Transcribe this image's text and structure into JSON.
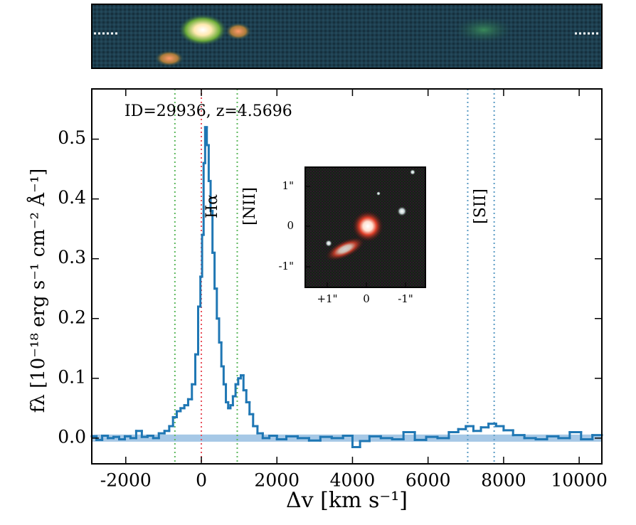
{
  "chart_data": {
    "type": "step",
    "annotation": "ID=29936, z=4.5696",
    "xlabel": "Δv [km s⁻¹]",
    "ylabel": "fλ [10⁻¹⁸ erg s⁻¹ cm⁻² Å⁻¹]",
    "xlim": [
      -2900,
      10600
    ],
    "ylim": [
      -0.043,
      0.584
    ],
    "xticks": [
      -2000,
      0,
      2000,
      4000,
      6000,
      8000,
      10000
    ],
    "yticks": [
      {
        "value": 0,
        "label": "0.0"
      },
      0.1,
      0.2,
      0.3,
      0.4,
      0.5
    ],
    "x": [
      -2850,
      -2700,
      -2550,
      -2400,
      -2250,
      -2100,
      -1950,
      -1800,
      -1650,
      -1500,
      -1350,
      -1200,
      -1050,
      -900,
      -800,
      -700,
      -600,
      -500,
      -400,
      -300,
      -200,
      -120,
      -50,
      0,
      40,
      80,
      120,
      170,
      220,
      270,
      320,
      380,
      440,
      500,
      560,
      620,
      680,
      740,
      800,
      870,
      940,
      1010,
      1080,
      1150,
      1230,
      1320,
      1420,
      1550,
      1700,
      1900,
      2100,
      2400,
      2700,
      3000,
      3300,
      3600,
      3900,
      4100,
      4300,
      4600,
      4900,
      5200,
      5500,
      5800,
      6100,
      6400,
      6700,
      6900,
      7100,
      7300,
      7500,
      7700,
      7900,
      8100,
      8400,
      8700,
      9000,
      9300,
      9600,
      9900,
      10200,
      10500
    ],
    "series": [
      {
        "color": "#1f77b4",
        "values": [
          0.003,
          -0.003,
          0.004,
          0.0,
          0.002,
          -0.002,
          0.003,
          0.0,
          0.012,
          0.002,
          0.004,
          0.0,
          0.008,
          0.012,
          0.02,
          0.035,
          0.045,
          0.05,
          0.055,
          0.065,
          0.09,
          0.14,
          0.22,
          0.27,
          0.34,
          0.46,
          0.52,
          0.49,
          0.43,
          0.38,
          0.31,
          0.25,
          0.2,
          0.16,
          0.12,
          0.09,
          0.06,
          0.05,
          0.055,
          0.07,
          0.09,
          0.1,
          0.105,
          0.08,
          0.06,
          0.04,
          0.02,
          0.008,
          0.0,
          0.004,
          -0.002,
          0.003,
          0.0,
          -0.004,
          0.002,
          0.0,
          0.004,
          -0.015,
          -0.005,
          0.003,
          0.0,
          -0.002,
          0.01,
          -0.003,
          0.002,
          0.0,
          0.01,
          0.015,
          0.02,
          0.012,
          0.018,
          0.024,
          0.02,
          0.013,
          0.005,
          0.0,
          -0.002,
          0.003,
          0.0,
          0.01,
          -0.002,
          0.005
        ]
      }
    ],
    "band": {
      "lower": -0.006,
      "upper": 0.006,
      "color": "#a6c8e6"
    },
    "vlines": [
      {
        "x": 0,
        "color": "#e8505b"
      },
      {
        "x": -700,
        "color": "#5cb85c"
      },
      {
        "x": 950,
        "color": "#5cb85c"
      },
      {
        "x": 7050,
        "color": "#5a9bc4"
      },
      {
        "x": 7750,
        "color": "#5a9bc4"
      }
    ],
    "line_labels": [
      {
        "text": "Hα",
        "x": 300
      },
      {
        "text": "[NII]",
        "x": 1300
      },
      {
        "text": "[SII]",
        "x": 7400
      }
    ],
    "inset": {
      "xtick_labels": [
        "+1\"",
        "0",
        "-1\""
      ],
      "ytick_labels": [
        "1\"",
        "0",
        "-1\""
      ]
    }
  }
}
